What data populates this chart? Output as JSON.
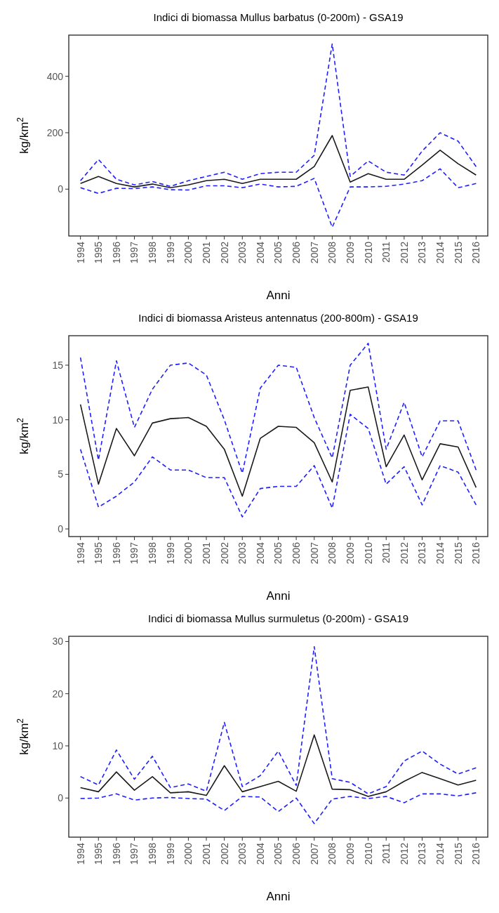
{
  "chart_data": [
    {
      "type": "line",
      "title": "Indici di biomassa Mullus barbatus (0-200m) - GSA19",
      "xlabel": "Anni",
      "ylabel": "kg/km$^{2}$",
      "categories": [
        "1994",
        "1995",
        "1996",
        "1997",
        "1998",
        "1999",
        "2000",
        "2001",
        "2002",
        "2003",
        "2004",
        "2005",
        "2006",
        "2007",
        "2008",
        "2009",
        "2010",
        "2011",
        "2012",
        "2013",
        "2014",
        "2015",
        "2016"
      ],
      "ylim": [
        -166,
        546
      ],
      "yticks": [
        0,
        200,
        400
      ],
      "grid": false,
      "series": [
        {
          "color": "#1f1fff",
          "line_style": "dashed",
          "values": [
            30,
            105,
            35,
            15,
            27,
            10,
            30,
            45,
            60,
            35,
            55,
            60,
            60,
            120,
            515,
            45,
            100,
            60,
            50,
            135,
            200,
            170,
            80
          ]
        },
        {
          "color": "#1f1fff",
          "line_style": "dashed",
          "values": [
            5,
            -15,
            3,
            2,
            8,
            -2,
            -3,
            12,
            12,
            5,
            18,
            8,
            10,
            38,
            -135,
            8,
            8,
            10,
            18,
            30,
            72,
            5,
            20
          ]
        },
        {
          "color": "#1a1a1a",
          "line_style": "solid",
          "values": [
            20,
            45,
            20,
            8,
            18,
            5,
            15,
            30,
            35,
            20,
            35,
            35,
            35,
            80,
            190,
            25,
            55,
            35,
            35,
            85,
            138,
            90,
            50
          ]
        }
      ]
    },
    {
      "type": "line",
      "title": "Indici di biomassa Aristeus antennatus (200-800m) - GSA19",
      "xlabel": "Anni",
      "ylabel": "kg/km$^{2}$",
      "categories": [
        "1994",
        "1995",
        "1996",
        "1997",
        "1998",
        "1999",
        "2000",
        "2001",
        "2002",
        "2003",
        "2004",
        "2005",
        "2006",
        "2007",
        "2008",
        "2009",
        "2010",
        "2011",
        "2012",
        "2013",
        "2014",
        "2015",
        "2016"
      ],
      "ylim": [
        -0.7,
        17.7
      ],
      "yticks": [
        0,
        5,
        10,
        15
      ],
      "grid": false,
      "series": [
        {
          "color": "#1f1fff",
          "line_style": "dashed",
          "values": [
            15.7,
            6.3,
            15.4,
            9.3,
            12.8,
            15.0,
            15.2,
            14.1,
            10.0,
            5.1,
            12.9,
            15.0,
            14.8,
            10.2,
            6.5,
            15.0,
            17.0,
            7.3,
            11.6,
            6.6,
            9.9,
            9.9,
            5.4
          ]
        },
        {
          "color": "#1f1fff",
          "line_style": "dashed",
          "values": [
            7.3,
            2.0,
            3.0,
            4.3,
            6.6,
            5.4,
            5.4,
            4.7,
            4.7,
            1.1,
            3.7,
            3.9,
            3.9,
            5.8,
            1.9,
            10.5,
            9.2,
            4.1,
            5.7,
            2.2,
            5.8,
            5.2,
            2.2
          ]
        },
        {
          "color": "#1a1a1a",
          "line_style": "solid",
          "values": [
            11.4,
            4.1,
            9.2,
            6.7,
            9.7,
            10.1,
            10.2,
            9.4,
            7.3,
            3.0,
            8.3,
            9.4,
            9.3,
            7.9,
            4.3,
            12.7,
            13.0,
            5.7,
            8.6,
            4.5,
            7.8,
            7.5,
            3.8
          ]
        }
      ]
    },
    {
      "type": "line",
      "title": "Indici di biomassa Mullus surmuletus (0-200m) - GSA19",
      "xlabel": "Anni",
      "ylabel": "kg/km$^{2}$",
      "categories": [
        "1994",
        "1995",
        "1996",
        "1997",
        "1998",
        "1999",
        "2000",
        "2001",
        "2002",
        "2003",
        "2004",
        "2005",
        "2006",
        "2007",
        "2008",
        "2009",
        "2010",
        "2011",
        "2012",
        "2013",
        "2014",
        "2015",
        "2016"
      ],
      "ylim": [
        -7.5,
        31
      ],
      "yticks": [
        0,
        10,
        20,
        30
      ],
      "grid": false,
      "series": [
        {
          "color": "#1f1fff",
          "line_style": "dashed",
          "values": [
            4.1,
            2.5,
            9.2,
            3.6,
            8.0,
            2.0,
            2.7,
            1.3,
            14.5,
            2.2,
            4.3,
            9.0,
            2.4,
            29.0,
            3.7,
            3.0,
            0.8,
            2.2,
            7.1,
            9.0,
            6.5,
            4.6,
            5.8
          ]
        },
        {
          "color": "#1f1fff",
          "line_style": "dashed",
          "values": [
            -0.1,
            0,
            0.8,
            -0.4,
            0,
            0.1,
            -0.1,
            -0.2,
            -2.4,
            0.3,
            0.2,
            -2.6,
            0,
            -4.9,
            -0.2,
            0.3,
            -0.1,
            0.3,
            -0.9,
            0.8,
            0.8,
            0.4,
            1.0
          ]
        },
        {
          "color": "#1a1a1a",
          "line_style": "solid",
          "values": [
            2.0,
            1.2,
            5.0,
            1.5,
            4.1,
            1.0,
            1.2,
            0.5,
            6.2,
            1.2,
            2.2,
            3.2,
            1.3,
            12.1,
            1.7,
            1.6,
            0.3,
            1.2,
            3.2,
            4.9,
            3.7,
            2.5,
            3.4
          ]
        }
      ]
    }
  ]
}
